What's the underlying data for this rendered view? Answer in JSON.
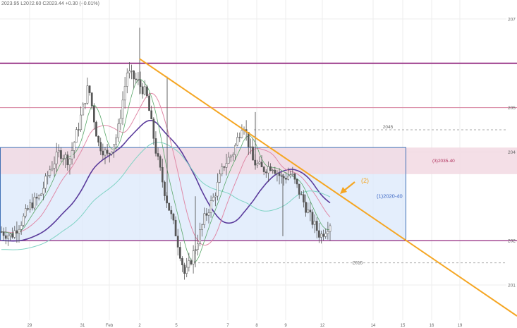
{
  "header": {
    "ohlc": "2023.95 L2022.60 C2023.44 +0.30 (+0.01%)"
  },
  "colors": {
    "background": "#ffffff",
    "grid": "#eeeeee",
    "candle": "#555555",
    "trendline": "#f5a623",
    "resistance": "#9b3a8a",
    "resistance_thin": "#d98ba5",
    "blue_box_border": "#3f6fb5",
    "blue_box_fill": "#dbe8fb",
    "pink_zone_fill": "#f2d9e3",
    "pink_zone_label": "#b0305c",
    "blue_label": "#3a66c4",
    "dashed_level": "#a8a8a8",
    "ma_purple": "#5b3c9c",
    "ma_teal": "#7fd3c4",
    "ma_pink": "#e08aa8",
    "ma_green": "#5aa86a",
    "axis_text": "#666666"
  },
  "chart_data": {
    "type": "candlestick",
    "x_tick_labels": [
      "29",
      "31",
      "Feb",
      "2",
      "5",
      "7",
      "8",
      "9",
      "12",
      "14",
      "15",
      "16",
      "19"
    ],
    "y_tick_labels": [
      "207",
      "205",
      "204",
      "202",
      "201"
    ],
    "levels": {
      "resistance_upper": 2060,
      "resistance_lower": 2050,
      "blue_box_top": 2041,
      "pink_zone_bottom": 2035,
      "box_bottom": 2020,
      "dashed_2045": 2045,
      "dashed_2015": 2015
    },
    "trendline": {
      "start": 2061,
      "end": 2003,
      "note": "descending resistance"
    },
    "annotations": [
      {
        "text": "2045",
        "kind": "dashed-level"
      },
      {
        "text": "2015",
        "kind": "dashed-level"
      },
      {
        "text": "(3)2035-40",
        "kind": "zone"
      },
      {
        "text": "(1)2020-40",
        "kind": "box"
      },
      {
        "text": "(2)",
        "kind": "arrow"
      }
    ],
    "price_path": [
      2022,
      2021,
      2024,
      2028,
      2030,
      2036,
      2040,
      2038,
      2046,
      2055,
      2042,
      2039,
      2044,
      2058,
      2056,
      2053,
      2040,
      2030,
      2022,
      2012,
      2018,
      2025,
      2030,
      2037,
      2040,
      2047,
      2038,
      2036,
      2037,
      2034,
      2035,
      2030,
      2025,
      2021,
      2024
    ],
    "ylim": [
      2003,
      2073
    ]
  }
}
